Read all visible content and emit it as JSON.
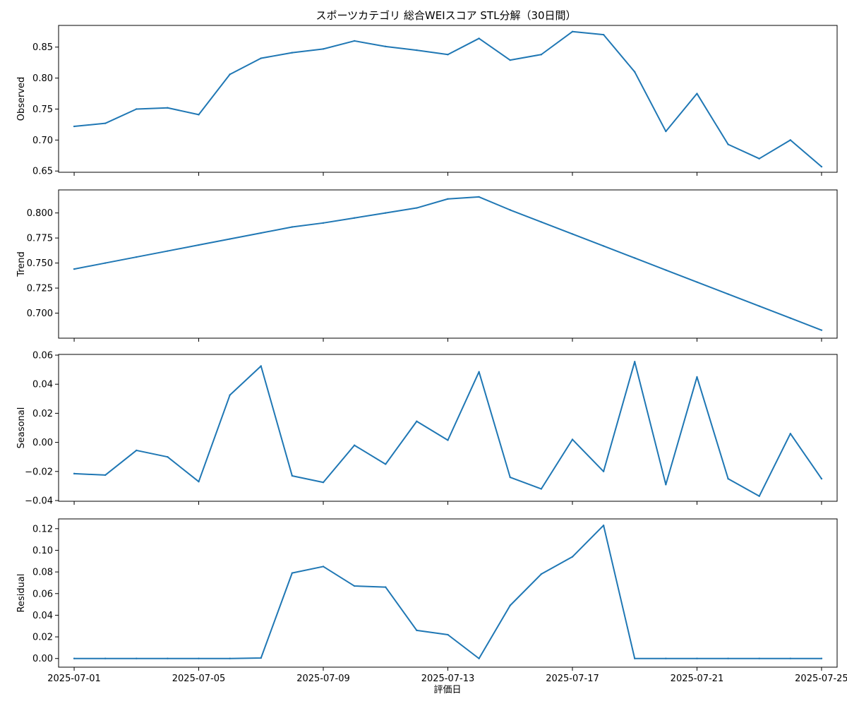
{
  "chart_data": {
    "type": "line",
    "title": "スポーツカテゴリ 総合WEIスコア STL分解（30日間）",
    "xlabel": "評価日",
    "line_color": "#1f77b4",
    "x": [
      "2025-07-01",
      "2025-07-02",
      "2025-07-03",
      "2025-07-04",
      "2025-07-05",
      "2025-07-06",
      "2025-07-07",
      "2025-07-08",
      "2025-07-09",
      "2025-07-10",
      "2025-07-11",
      "2025-07-12",
      "2025-07-13",
      "2025-07-14",
      "2025-07-15",
      "2025-07-16",
      "2025-07-17",
      "2025-07-18",
      "2025-07-19",
      "2025-07-20",
      "2025-07-21",
      "2025-07-22",
      "2025-07-23",
      "2025-07-24",
      "2025-07-25"
    ],
    "xlim": [
      "2025-06-30T12:00",
      "2025-07-25T12:00"
    ],
    "x_ticks": [
      "2025-07-01",
      "2025-07-05",
      "2025-07-09",
      "2025-07-13",
      "2025-07-17",
      "2025-07-21",
      "2025-07-25"
    ],
    "panels": [
      {
        "ylabel": "Observed",
        "ylim": [
          0.648,
          0.885
        ],
        "y_ticks": [
          "0.65",
          "0.70",
          "0.75",
          "0.80",
          "0.85"
        ],
        "values": [
          0.722,
          0.727,
          0.75,
          0.752,
          0.741,
          0.806,
          0.832,
          0.841,
          0.847,
          0.86,
          0.851,
          0.845,
          0.838,
          0.864,
          0.829,
          0.838,
          0.875,
          0.87,
          0.81,
          0.714,
          0.775,
          0.693,
          0.67,
          0.7,
          0.657
        ]
      },
      {
        "ylabel": "Trend",
        "ylim": [
          0.675,
          0.823
        ],
        "y_ticks": [
          "0.700",
          "0.725",
          "0.750",
          "0.775",
          "0.800"
        ],
        "values": [
          0.744,
          0.75,
          0.756,
          0.762,
          0.768,
          0.774,
          0.78,
          0.786,
          0.79,
          0.795,
          0.8,
          0.805,
          0.814,
          0.816,
          0.803,
          0.791,
          0.779,
          0.767,
          0.755,
          0.743,
          0.731,
          0.719,
          0.707,
          0.695,
          0.683
        ]
      },
      {
        "ylabel": "Seasonal",
        "ylim": [
          -0.0405,
          0.0605
        ],
        "y_ticks": [
          "−0.04",
          "−0.02",
          "0.00",
          "0.02",
          "0.04",
          "0.06"
        ],
        "values": [
          -0.0215,
          -0.0225,
          -0.0055,
          -0.01,
          -0.027,
          0.0325,
          0.0525,
          -0.023,
          -0.0275,
          -0.002,
          -0.015,
          0.0145,
          0.0015,
          0.0485,
          -0.024,
          -0.032,
          0.002,
          -0.02,
          0.0555,
          -0.029,
          0.045,
          -0.025,
          -0.037,
          0.006,
          -0.025
        ]
      },
      {
        "ylabel": "Residual",
        "ylim": [
          -0.008,
          0.129
        ],
        "y_ticks": [
          "0.00",
          "0.02",
          "0.04",
          "0.06",
          "0.08",
          "0.10",
          "0.12"
        ],
        "values": [
          0.0,
          0.0,
          0.0,
          0.0,
          0.0,
          0.0,
          0.0005,
          0.079,
          0.085,
          0.067,
          0.066,
          0.026,
          0.022,
          0.0,
          0.049,
          0.078,
          0.094,
          0.123,
          0.0,
          0.0,
          0.0,
          0.0,
          0.0,
          0.0,
          0.0
        ]
      }
    ]
  }
}
